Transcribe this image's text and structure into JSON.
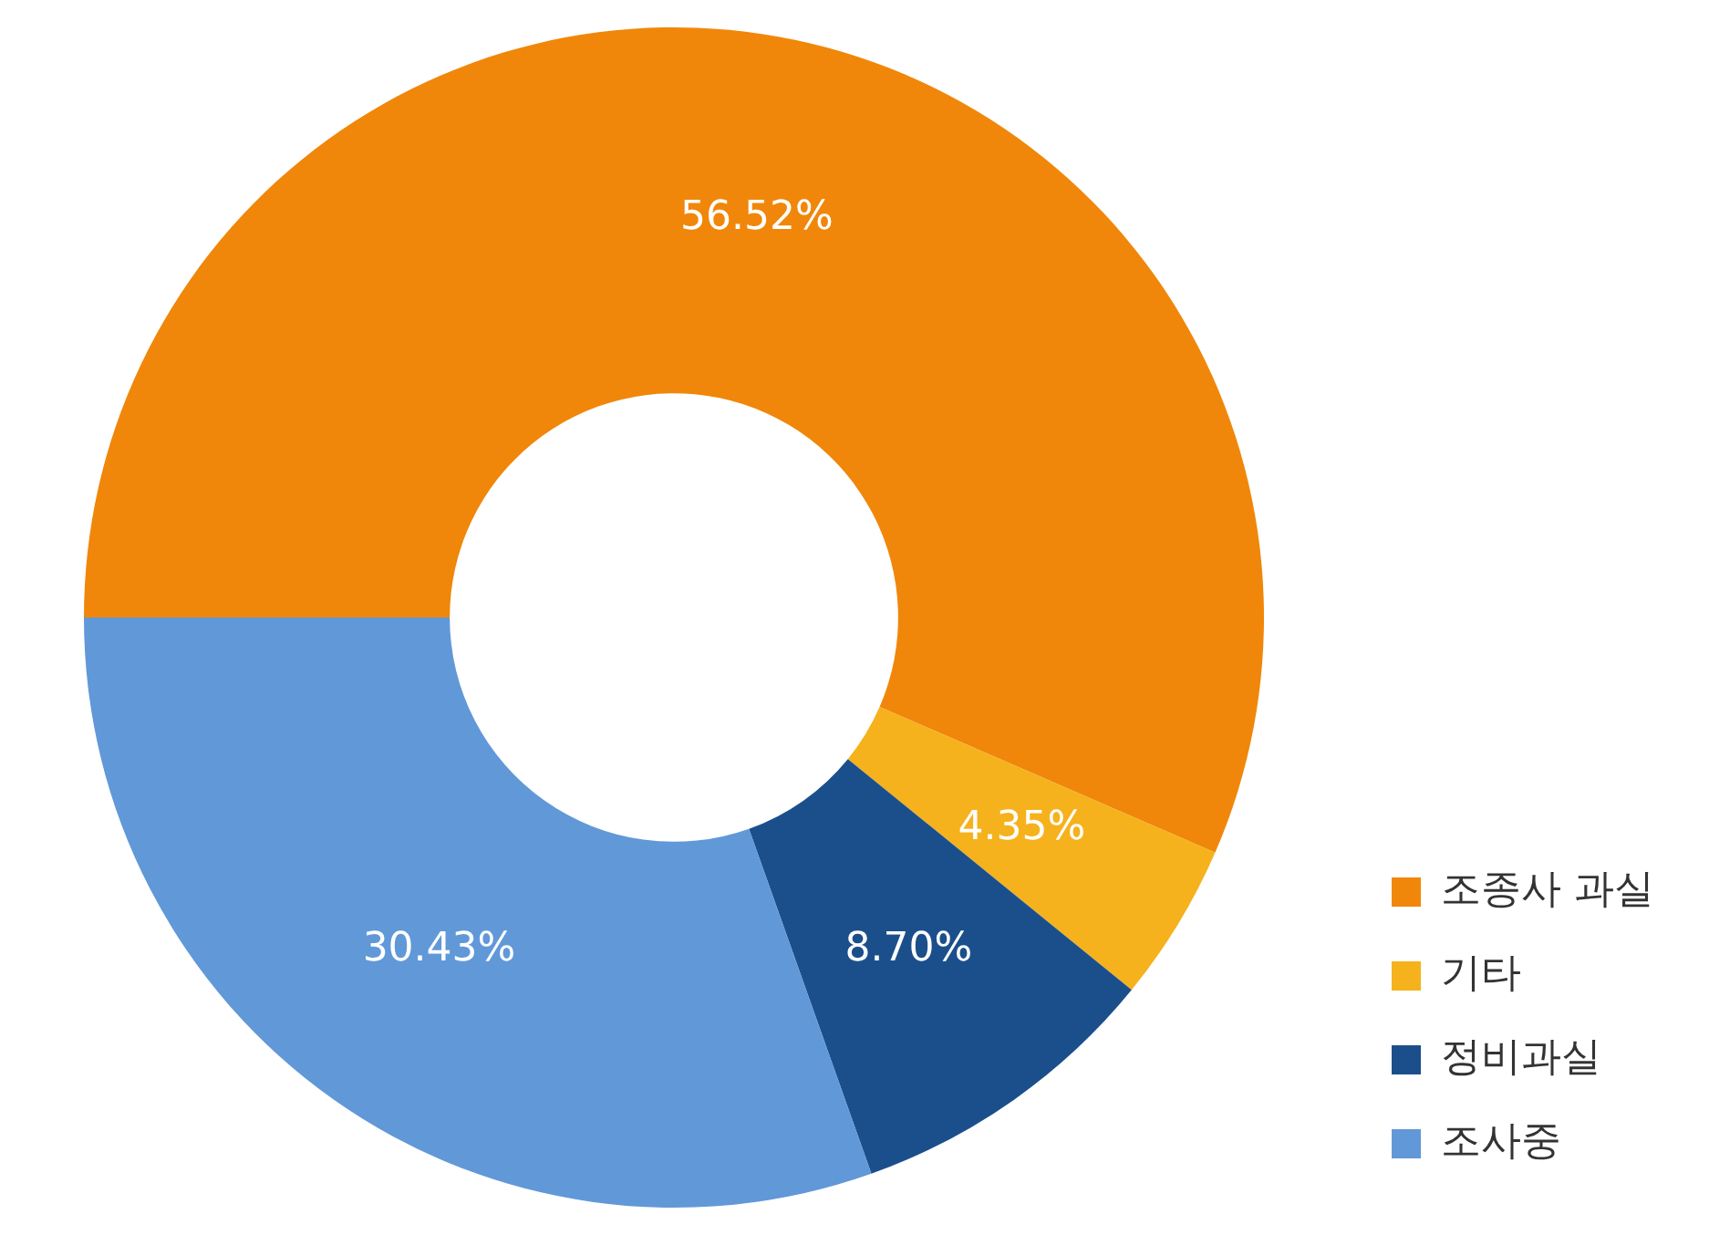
{
  "chart_data": {
    "type": "donut",
    "categories": [
      "조종사 과실",
      "기타",
      "정비과실",
      "조사중"
    ],
    "values": [
      56.52,
      4.35,
      8.7,
      30.43
    ],
    "colors": [
      "#f0870a",
      "#f5b21c",
      "#1b4f8c",
      "#6198d8"
    ],
    "value_labels": [
      "56.52%",
      "4.35%",
      "8.70%",
      "30.43%"
    ],
    "legend": "right"
  }
}
